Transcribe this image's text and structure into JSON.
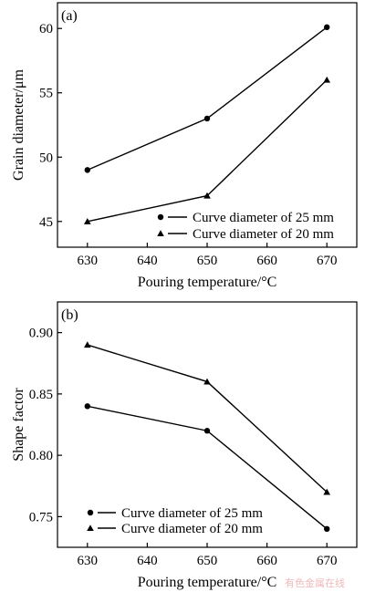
{
  "chart_data": [
    {
      "type": "line",
      "panel_label": "(a)",
      "xlabel": "Pouring temperature/°C",
      "ylabel": "Grain diameter/μm",
      "x": [
        630,
        650,
        670
      ],
      "xlim": [
        625,
        675
      ],
      "ylim": [
        43,
        62
      ],
      "xticks": [
        "630",
        "640",
        "650",
        "660",
        "670"
      ],
      "xtick_values": [
        630,
        640,
        650,
        660,
        670
      ],
      "yticks": [
        "45",
        "50",
        "55",
        "60"
      ],
      "ytick_values": [
        45,
        50,
        55,
        60
      ],
      "legend_position": "bottom-right",
      "grid": false,
      "series": [
        {
          "name": "Curve diameter of 25 mm",
          "marker": "circle",
          "values": [
            49.0,
            53.0,
            60.1
          ]
        },
        {
          "name": "Curve diameter of 20 mm",
          "marker": "triangle",
          "values": [
            45.0,
            47.0,
            56.0
          ]
        }
      ]
    },
    {
      "type": "line",
      "panel_label": "(b)",
      "xlabel": "Pouring temperature/°C",
      "ylabel": "Shape factor",
      "x": [
        630,
        650,
        670
      ],
      "xlim": [
        625,
        675
      ],
      "ylim": [
        0.725,
        0.925
      ],
      "xticks": [
        "630",
        "640",
        "650",
        "660",
        "670"
      ],
      "xtick_values": [
        630,
        640,
        650,
        660,
        670
      ],
      "yticks": [
        "0.75",
        "0.80",
        "0.85",
        "0.90"
      ],
      "ytick_values": [
        0.75,
        0.8,
        0.85,
        0.9
      ],
      "legend_position": "bottom-left",
      "grid": false,
      "series": [
        {
          "name": "Curve diameter of 25 mm",
          "marker": "circle",
          "values": [
            0.84,
            0.82,
            0.74
          ]
        },
        {
          "name": "Curve diameter of 20 mm",
          "marker": "triangle",
          "values": [
            0.89,
            0.86,
            0.77
          ]
        }
      ]
    }
  ],
  "watermark": "有色金属在线"
}
